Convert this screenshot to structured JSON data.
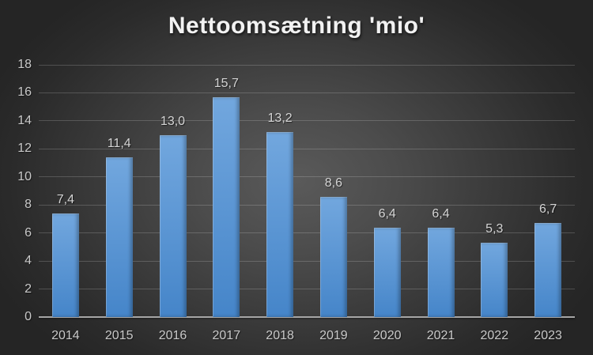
{
  "title": "Nettoomsætning 'mio'",
  "colors": {
    "bar_top": "#72a7de",
    "bar_bottom": "#4585c9",
    "axis_line": "#a6a6a6",
    "gridline": "rgba(255,255,255,0.18)",
    "tick_label": "#c9c9c9",
    "value_label": "#d5d5d5",
    "title": "#f2f2f2",
    "background_center": "#5a5a5a",
    "background_edge": "#252525"
  },
  "chart_data": {
    "type": "bar",
    "title": "Nettoomsætning 'mio'",
    "categories": [
      "2014",
      "2015",
      "2016",
      "2017",
      "2018",
      "2019",
      "2020",
      "2021",
      "2022",
      "2023"
    ],
    "values": [
      7.4,
      11.4,
      13.0,
      15.7,
      13.2,
      8.6,
      6.4,
      6.4,
      5.3,
      6.7
    ],
    "value_labels": [
      "7,4",
      "11,4",
      "13,0",
      "15,7",
      "13,2",
      "8,6",
      "6,4",
      "6,4",
      "5,3",
      "6,7"
    ],
    "xlabel": "",
    "ylabel": "",
    "ylim": [
      0,
      18
    ],
    "ytick_interval": 2,
    "yticks": [
      "0",
      "2",
      "4",
      "6",
      "8",
      "10",
      "12",
      "14",
      "16",
      "18"
    ],
    "grid": true,
    "legend": false,
    "series_color": "#5b9bd5",
    "decimal_separator": ","
  }
}
